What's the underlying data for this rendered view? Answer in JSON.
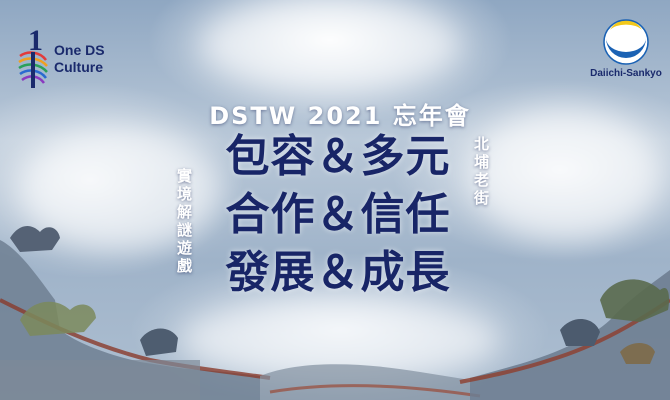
{
  "logos": {
    "left": {
      "line1": "One DS",
      "line2": "Culture",
      "mark": "1"
    },
    "right": {
      "name": "Daiichi-Sankyo"
    }
  },
  "banner": {
    "event_title": "DSTW 2021 忘年會",
    "headlines": [
      "包容＆多元",
      "合作＆信任",
      "發展＆成長"
    ],
    "left_vertical": "實境解謎遊戲",
    "right_vertical": "北埔老街"
  },
  "colors": {
    "navy": "#182567",
    "sky": "#9fb3c9",
    "white": "#ffffff"
  }
}
